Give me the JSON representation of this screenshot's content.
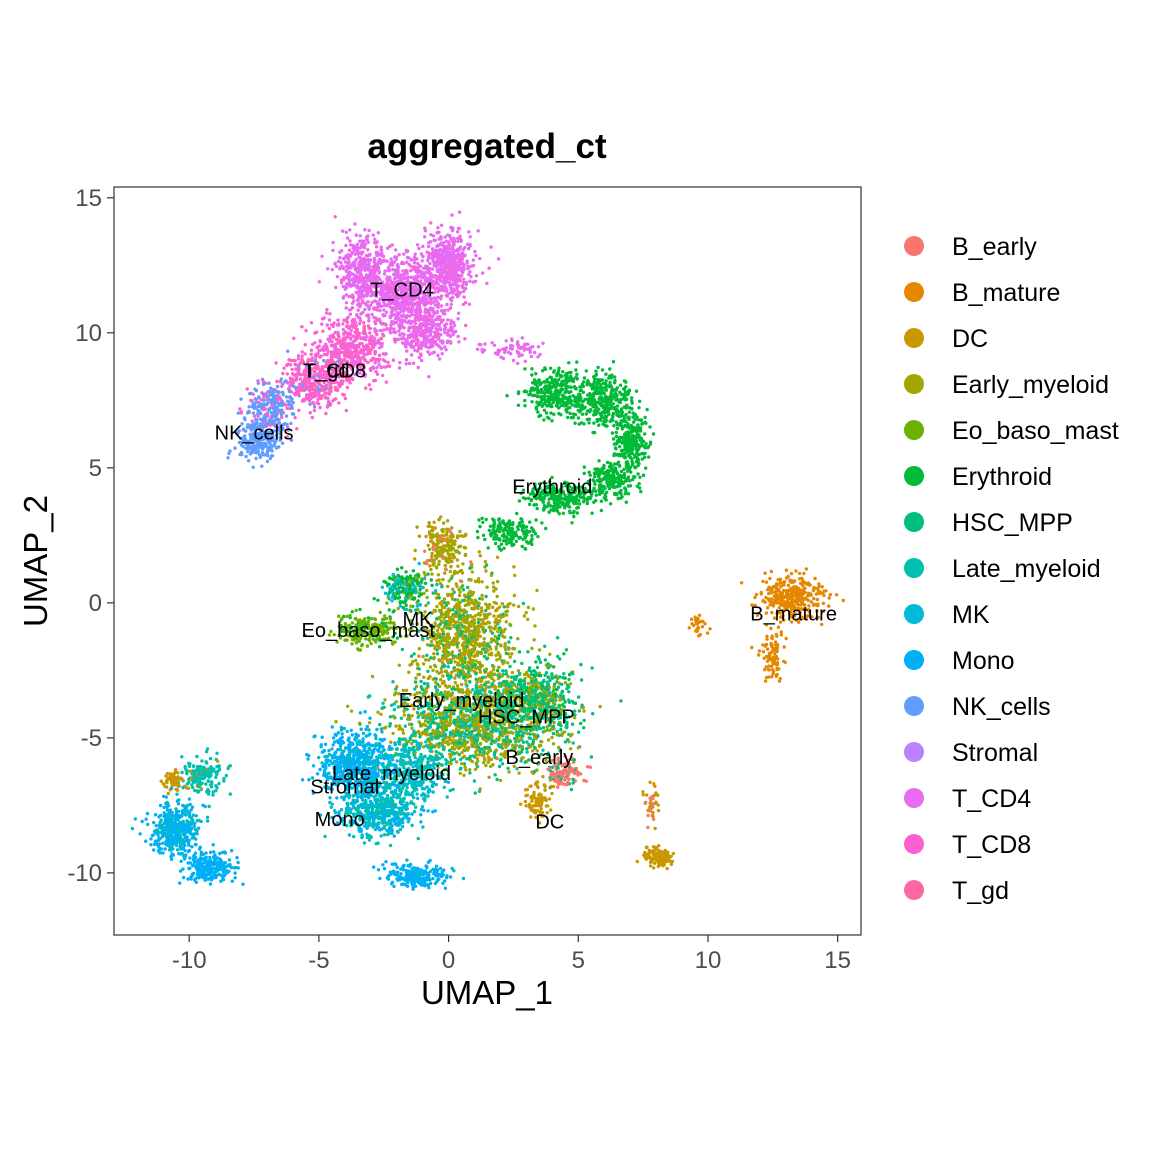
{
  "chart_data": {
    "type": "scatter",
    "title": "aggregated_ct",
    "xlabel": "UMAP_1",
    "ylabel": "UMAP_2",
    "xlim": [
      -12.9,
      15.9
    ],
    "ylim": [
      -12.3,
      15.4
    ],
    "xticks": [
      -10,
      -5,
      0,
      5,
      10,
      15
    ],
    "yticks": [
      -10,
      -5,
      0,
      5,
      10,
      15
    ],
    "xtick_labels": [
      "-10",
      "-5",
      "0",
      "5",
      "10",
      "15"
    ],
    "ytick_labels": [
      "-10",
      "-5",
      "0",
      "5",
      "10",
      "15"
    ],
    "grid": false,
    "legend_position": "right",
    "series": [
      {
        "name": "B_early",
        "color": "#F8766D"
      },
      {
        "name": "B_mature",
        "color": "#E58700"
      },
      {
        "name": "DC",
        "color": "#C99800"
      },
      {
        "name": "Early_myeloid",
        "color": "#A3A500"
      },
      {
        "name": "Eo_baso_mast",
        "color": "#6BB100"
      },
      {
        "name": "Erythroid",
        "color": "#00BA38"
      },
      {
        "name": "HSC_MPP",
        "color": "#00BF7D"
      },
      {
        "name": "Late_myeloid",
        "color": "#00C0AF"
      },
      {
        "name": "MK",
        "color": "#00BCD8"
      },
      {
        "name": "Mono",
        "color": "#00B0F6"
      },
      {
        "name": "NK_cells",
        "color": "#619CFF"
      },
      {
        "name": "Stromal",
        "color": "#B983FF"
      },
      {
        "name": "T_CD4",
        "color": "#E76BF3"
      },
      {
        "name": "T_CD8",
        "color": "#FD61D1"
      },
      {
        "name": "T_gd",
        "color": "#FF67A4"
      }
    ],
    "cluster_labels": [
      {
        "text": "T_CD4",
        "x": -1.8,
        "y": 11.6
      },
      {
        "text": "T_CD8",
        "x": -4.4,
        "y": 8.6
      },
      {
        "text": "T_gd",
        "x": -4.7,
        "y": 8.6
      },
      {
        "text": "NK_cells",
        "x": -7.5,
        "y": 6.3
      },
      {
        "text": "Erythroid",
        "x": 4.0,
        "y": 4.3
      },
      {
        "text": "B_mature",
        "x": 13.3,
        "y": -0.4
      },
      {
        "text": "MK",
        "x": -1.2,
        "y": -0.6
      },
      {
        "text": "Eo_baso_mast",
        "x": -3.1,
        "y": -1.0
      },
      {
        "text": "Early_myeloid",
        "x": 0.5,
        "y": -3.6
      },
      {
        "text": "HSC_MPP",
        "x": 3.0,
        "y": -4.2
      },
      {
        "text": "B_early",
        "x": 3.5,
        "y": -5.7
      },
      {
        "text": "Late_myeloid",
        "x": -2.2,
        "y": -6.3
      },
      {
        "text": "Stromal",
        "x": -4.0,
        "y": -6.8
      },
      {
        "text": "Mono",
        "x": -4.2,
        "y": -8.0
      },
      {
        "text": "DC",
        "x": 3.9,
        "y": -8.1
      }
    ]
  }
}
